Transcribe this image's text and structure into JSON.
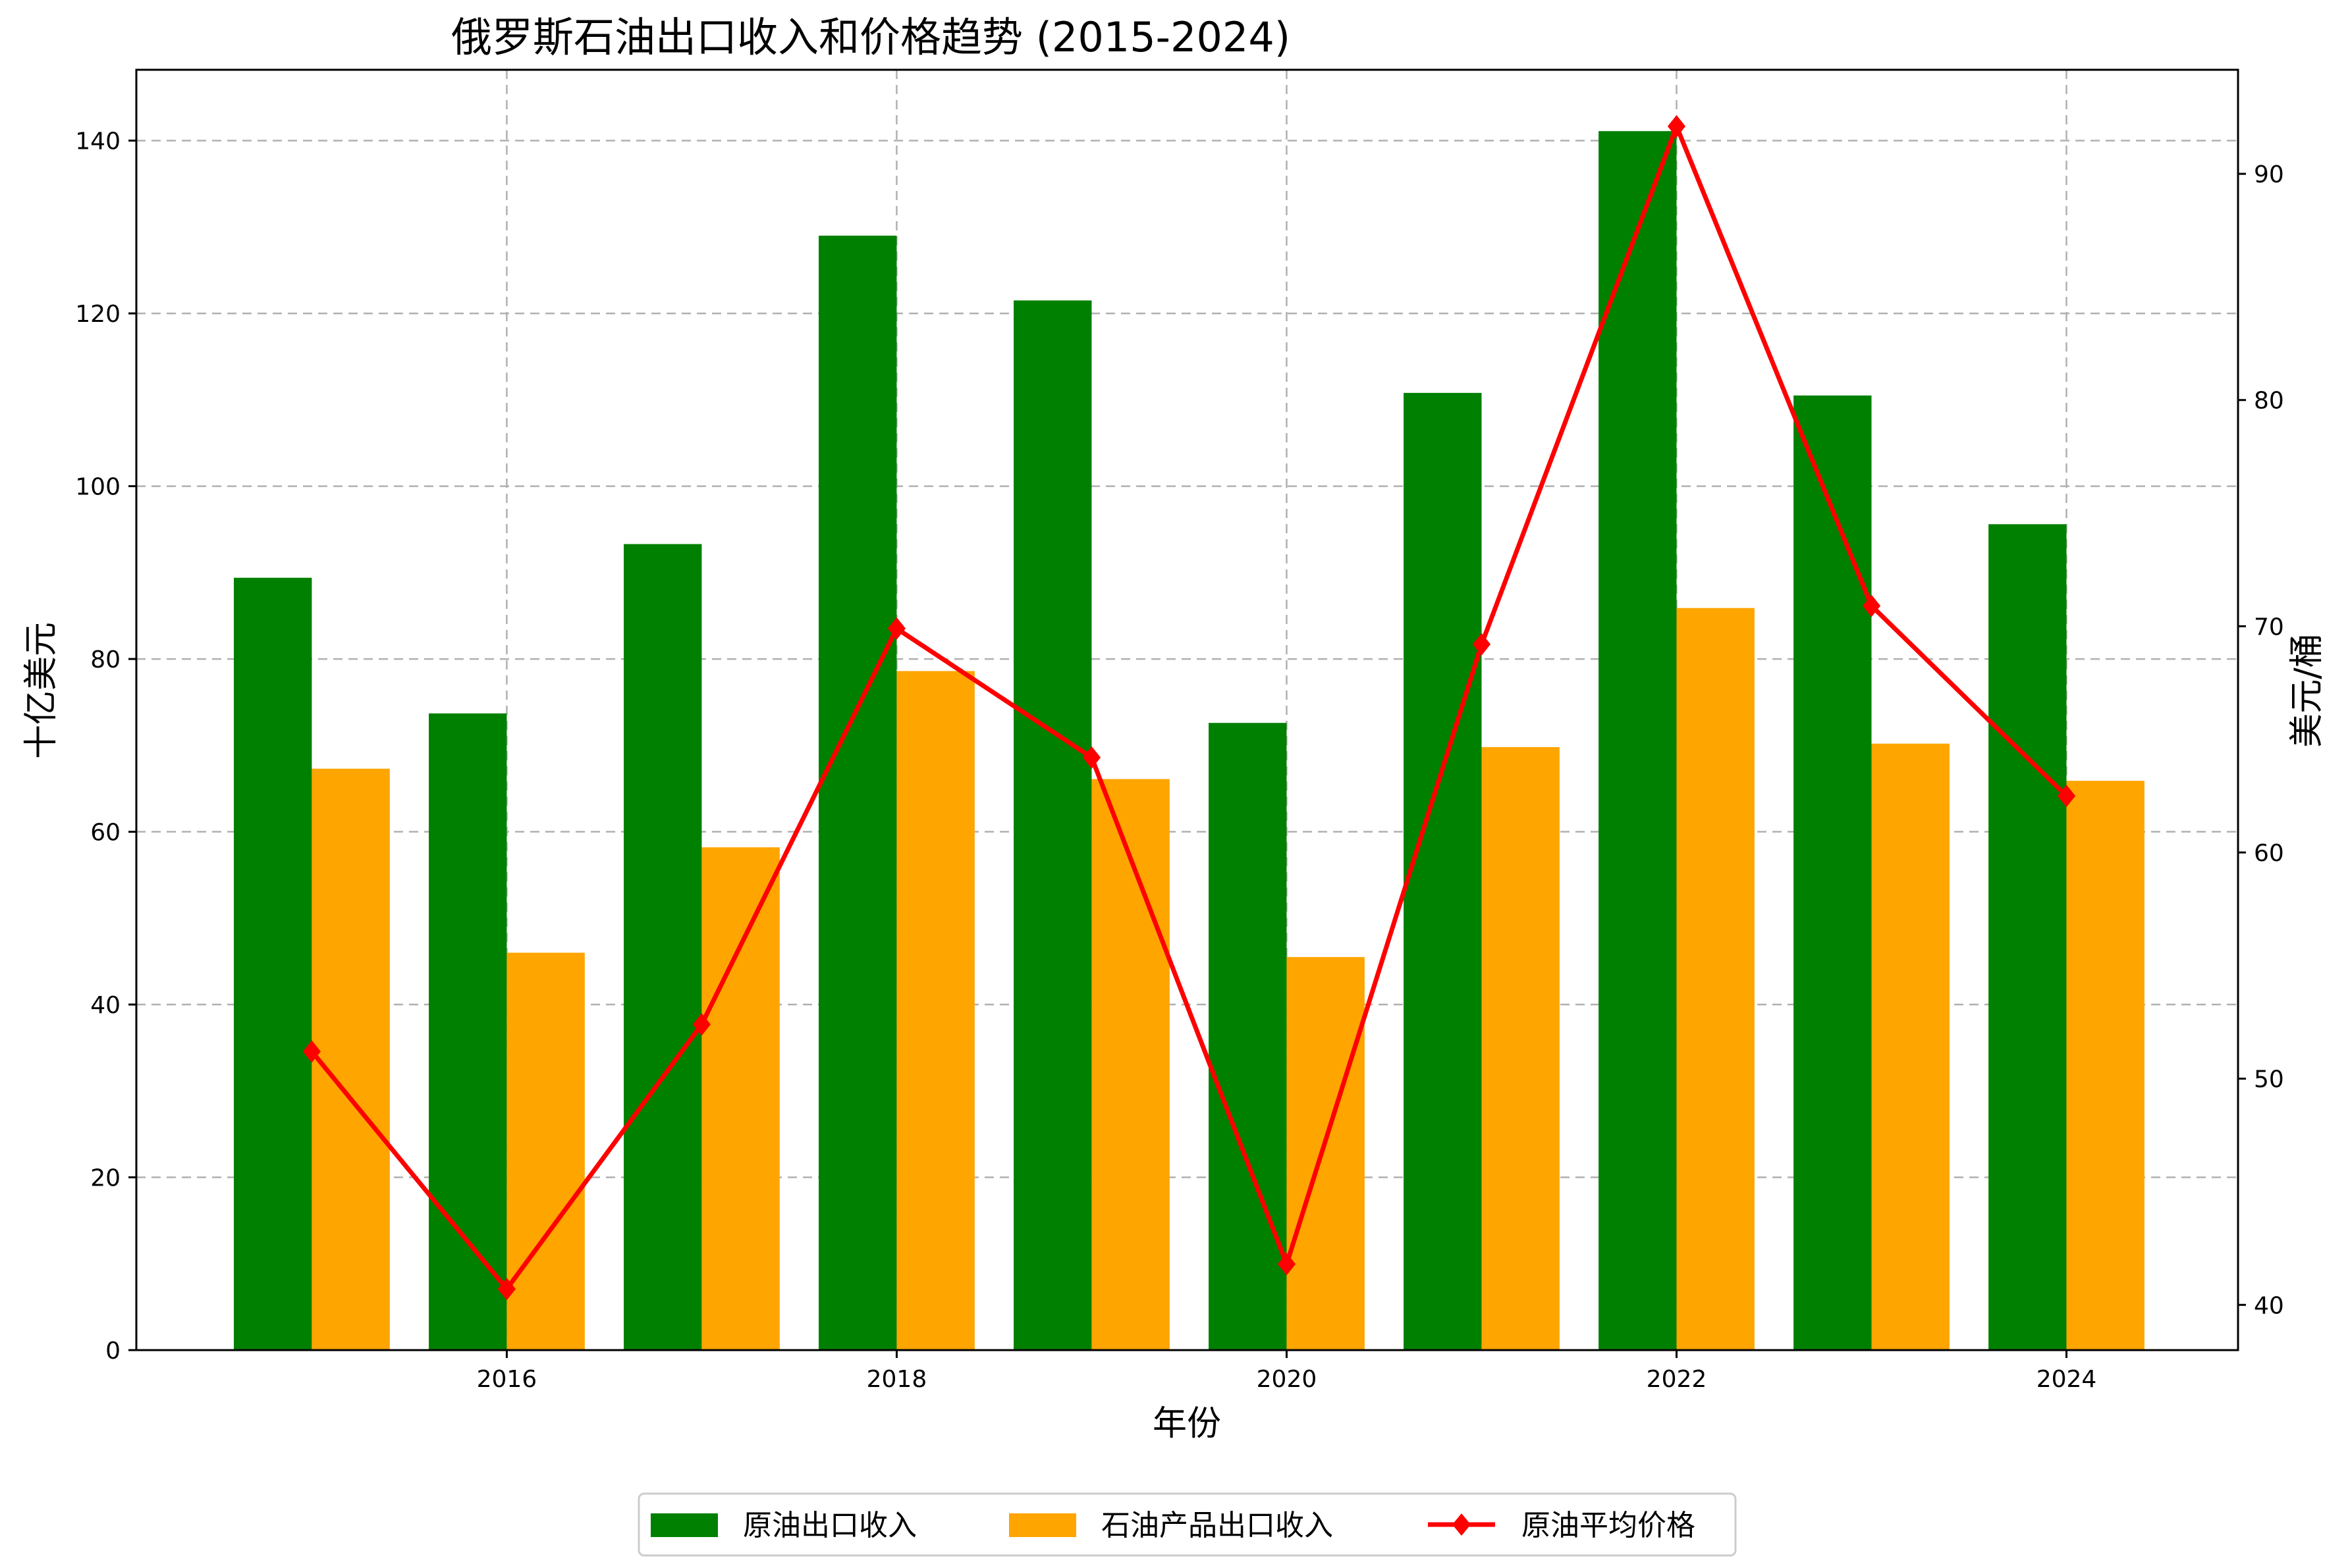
{
  "chart_data": {
    "type": "bar",
    "title": "俄罗斯石油出口收入和价格趋势 (2015-2024)",
    "xlabel": "年份",
    "ylabel": "十亿美元",
    "y2label": "美元/桶",
    "x": [
      2015,
      2016,
      2017,
      2018,
      2019,
      2020,
      2021,
      2022,
      2023,
      2024
    ],
    "x_ticks": [
      2016,
      2018,
      2020,
      2022,
      2024
    ],
    "xlim": [
      2014.1,
      2024.88
    ],
    "ylim": [
      0,
      148.2
    ],
    "y_ticks": [
      0,
      20,
      40,
      60,
      80,
      100,
      120,
      140
    ],
    "y2lim": [
      38.0,
      94.6
    ],
    "y2_ticks": [
      40,
      50,
      60,
      70,
      80,
      90
    ],
    "grid": true,
    "legend_position": "bottom-center",
    "series": [
      {
        "name": "原油出口收入",
        "type": "bar",
        "axis": "left",
        "color": "#008000",
        "values": [
          89.4,
          73.7,
          93.3,
          129.0,
          121.5,
          72.6,
          110.8,
          141.1,
          110.5,
          95.6
        ]
      },
      {
        "name": "石油产品出口收入",
        "type": "bar",
        "axis": "left",
        "color": "#FFA500",
        "values": [
          67.3,
          46.0,
          58.2,
          78.6,
          66.1,
          45.5,
          69.8,
          85.9,
          70.2,
          65.9
        ]
      },
      {
        "name": "原油平均价格",
        "type": "line",
        "axis": "right",
        "color": "#FF0000",
        "marker": "diamond",
        "values": [
          51.2,
          40.7,
          52.4,
          69.9,
          64.2,
          41.8,
          69.2,
          92.1,
          70.9,
          62.5
        ]
      }
    ]
  }
}
